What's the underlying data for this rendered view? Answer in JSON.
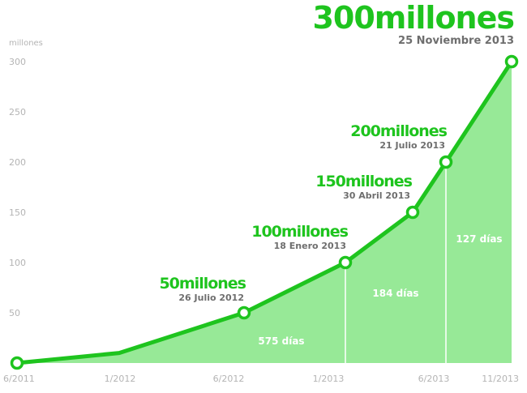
{
  "chart_data": {
    "type": "area",
    "title": "300millones",
    "subtitle": "25 Noviembre 2013",
    "ylabel": "millones",
    "xlabel": "",
    "ylim": [
      0,
      300
    ],
    "xlim": [
      "2011-06",
      "2013-11"
    ],
    "grid": false,
    "x": [
      "2011-06",
      "2012-01",
      "2012-07",
      "2013-01",
      "2013-04",
      "2013-07",
      "2013-11"
    ],
    "values": [
      0,
      10,
      50,
      100,
      150,
      200,
      300
    ],
    "y_ticks": [
      "50",
      "100",
      "150",
      "200",
      "250",
      "300"
    ],
    "x_tick_labels": [
      "6/2011",
      "1/2012",
      "6/2012",
      "1/2013",
      "6/2013",
      "11/2013"
    ],
    "milestones": [
      {
        "label": "50millones",
        "date": "26 Julio 2012"
      },
      {
        "label": "100millones",
        "date": "18 Enero 2013"
      },
      {
        "label": "150millones",
        "date": "30 Abril 2013"
      },
      {
        "label": "200millones",
        "date": "21 Julio 2013"
      }
    ],
    "intervals": [
      "575 días",
      "184 días",
      "127 días"
    ],
    "colors": {
      "line": "#1ec41e",
      "fill": "#97e997",
      "label": "#1ec41e",
      "date": "#6e6e6e",
      "axis": "#b4b4b4"
    }
  }
}
